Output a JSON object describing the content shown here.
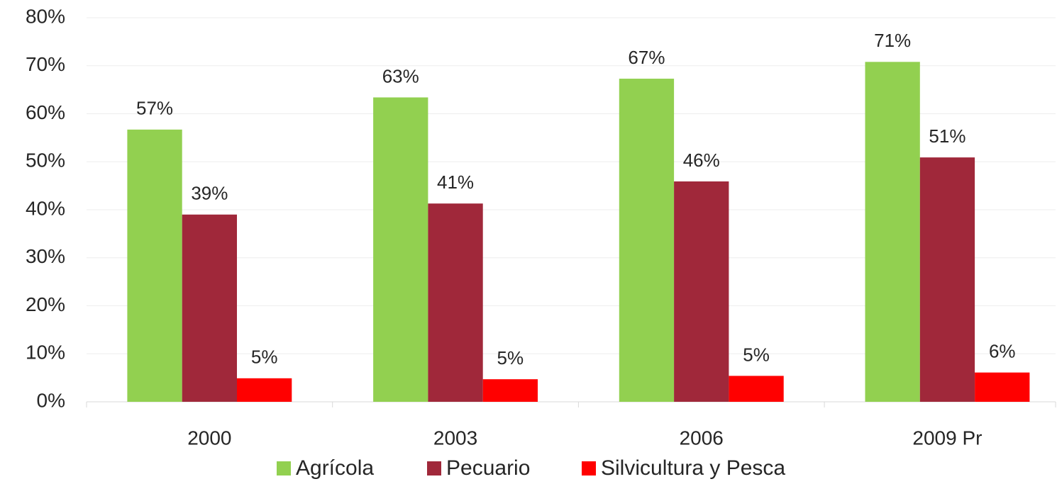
{
  "chart_data": {
    "type": "bar",
    "categories": [
      "2000",
      "2003",
      "2006",
      "2009 Pr"
    ],
    "series": [
      {
        "name": "Agrícola",
        "color": "#92d050",
        "values": [
          56.7,
          63.4,
          67.3,
          70.8
        ],
        "value_labels": [
          "57%",
          "63%",
          "67%",
          "71%"
        ]
      },
      {
        "name": "Pecuario",
        "color": "#a0283a",
        "values": [
          39.0,
          41.3,
          45.9,
          50.9
        ],
        "value_labels": [
          "39%",
          "41%",
          "46%",
          "51%"
        ]
      },
      {
        "name": "Silvicultura y Pesca",
        "color": "#ff0000",
        "values": [
          4.9,
          4.7,
          5.4,
          6.1
        ],
        "value_labels": [
          "5%",
          "5%",
          "5%",
          "6%"
        ]
      }
    ],
    "ylim": [
      0,
      80
    ],
    "yticks": [
      {
        "value": 0,
        "label": "0%"
      },
      {
        "value": 10,
        "label": "10%"
      },
      {
        "value": 20,
        "label": "20%"
      },
      {
        "value": 30,
        "label": "30%"
      },
      {
        "value": 40,
        "label": "40%"
      },
      {
        "value": 50,
        "label": "50%"
      },
      {
        "value": 60,
        "label": "60%"
      },
      {
        "value": 70,
        "label": "70%"
      },
      {
        "value": 80,
        "label": "80%"
      }
    ],
    "grid": true,
    "legend": "bottom"
  }
}
